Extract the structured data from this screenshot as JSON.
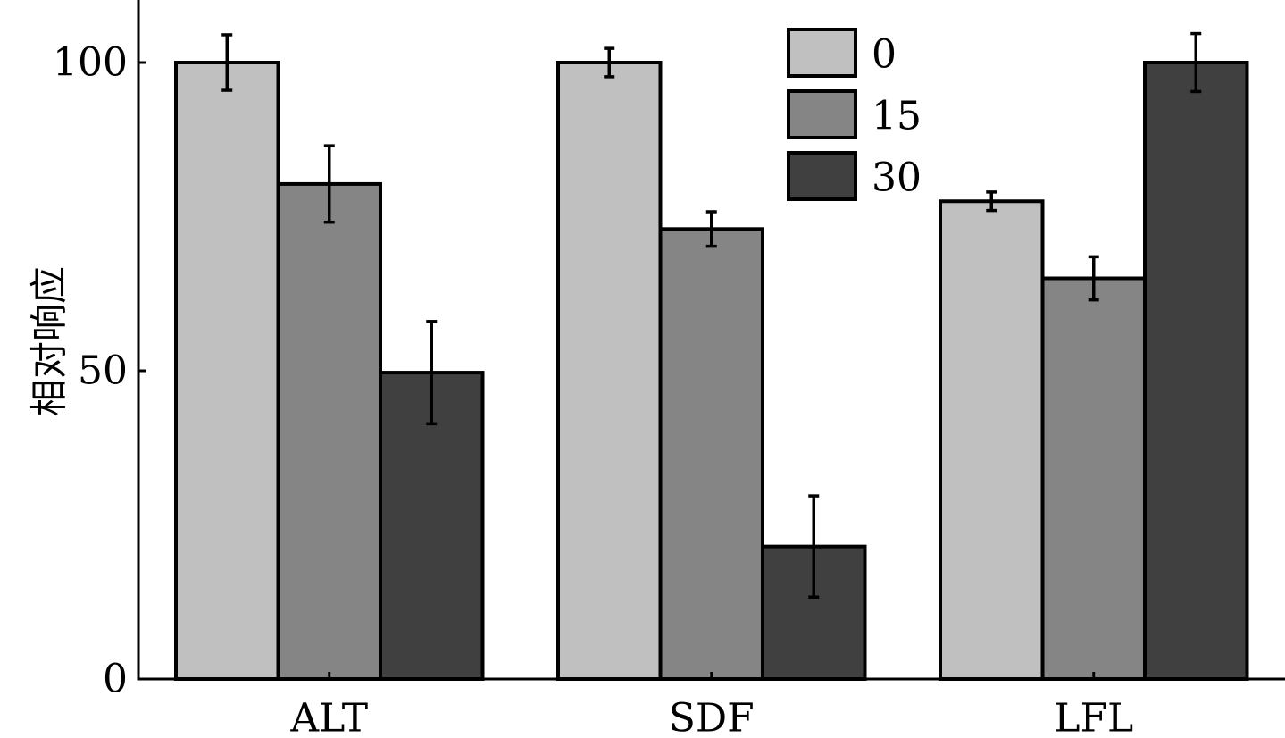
{
  "chart_data": {
    "type": "bar",
    "title": "",
    "xlabel": "",
    "ylabel": "相对响应",
    "ylim": [
      0,
      110
    ],
    "yticks": [
      0,
      50,
      100
    ],
    "categories": [
      "ALT",
      "SDF",
      "LFL"
    ],
    "series": [
      {
        "name": "0",
        "color": "#c0c0c0",
        "values": [
          100,
          100,
          77.5
        ],
        "errors": [
          4.5,
          2.3,
          1.5
        ]
      },
      {
        "name": "15",
        "color": "#858585",
        "values": [
          80.3,
          73,
          65
        ],
        "errors": [
          6.2,
          2.8,
          3.5
        ]
      },
      {
        "name": "30",
        "color": "#404040",
        "values": [
          49.7,
          21.5,
          100
        ],
        "errors": [
          8.3,
          8.2,
          4.7
        ]
      }
    ],
    "legend": "top-center",
    "grid": false
  }
}
